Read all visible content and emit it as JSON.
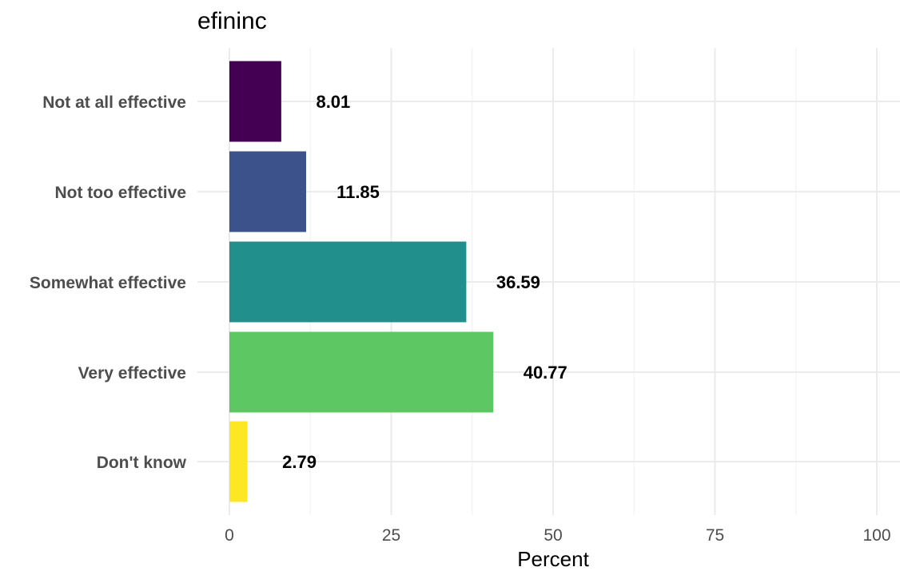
{
  "chart_data": {
    "type": "bar",
    "orientation": "horizontal",
    "title": "efininc",
    "xlabel": "Percent",
    "ylabel": "",
    "categories": [
      "Not at all effective",
      "Not too effective",
      "Somewhat effective",
      "Very effective",
      "Don't know"
    ],
    "values": [
      8.01,
      11.85,
      36.59,
      40.77,
      2.79
    ],
    "value_labels": [
      "8.01",
      "11.85",
      "36.59",
      "40.77",
      "2.79"
    ],
    "colors": [
      "#440154",
      "#3b528b",
      "#21908d",
      "#5dc863",
      "#fde725"
    ],
    "xlim": [
      0,
      100
    ],
    "xticks": [
      0,
      25,
      50,
      75,
      100
    ],
    "xtick_labels": [
      "0",
      "25",
      "50",
      "75",
      "100"
    ],
    "grid": true,
    "legend": "none"
  }
}
